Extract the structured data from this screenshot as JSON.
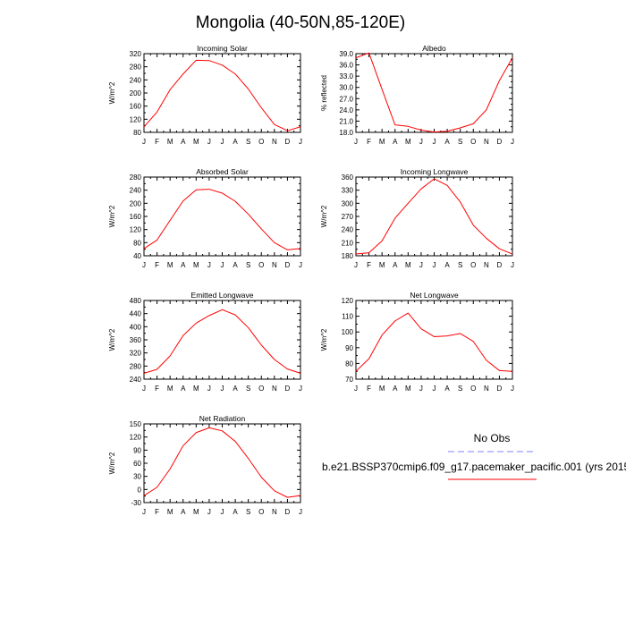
{
  "title": "Mongolia (40-50N,85-120E)",
  "legend": {
    "obs_label": "No Obs",
    "obs_color": "#8080ff",
    "model_label": "b.e21.BSSP370cmip6.f09_g17.pacemaker_pacific.001 (yrs 2015",
    "model_color": "#ff0000"
  },
  "chart_data": [
    {
      "type": "line",
      "title": "Incoming Solar",
      "ylabel": "W/m^2",
      "categories": [
        "J",
        "F",
        "M",
        "A",
        "M",
        "J",
        "J",
        "A",
        "S",
        "O",
        "N",
        "D",
        "J"
      ],
      "ylim": [
        80,
        320
      ],
      "yticks": [
        80,
        120,
        160,
        200,
        240,
        280,
        320
      ],
      "ytick_decimals": 0,
      "series": [
        {
          "color": "#ff0000",
          "values": [
            97,
            142,
            210,
            258,
            300,
            299,
            285,
            258,
            212,
            155,
            104,
            85,
            97
          ]
        }
      ]
    },
    {
      "type": "line",
      "title": "Albedo",
      "ylabel": "% reflected",
      "categories": [
        "J",
        "F",
        "M",
        "A",
        "M",
        "J",
        "J",
        "A",
        "S",
        "O",
        "N",
        "D",
        "J"
      ],
      "ylim": [
        18,
        39
      ],
      "yticks": [
        18,
        21,
        24,
        27,
        30,
        33,
        36,
        39
      ],
      "ytick_decimals": 1,
      "series": [
        {
          "color": "#ff0000",
          "values": [
            37.9,
            39.2,
            29.5,
            20.0,
            19.6,
            18.6,
            18.1,
            18.3,
            19.2,
            20.3,
            24.0,
            31.8,
            37.9
          ]
        }
      ]
    },
    {
      "type": "line",
      "title": "Absorbed Solar",
      "ylabel": "W/m^2",
      "categories": [
        "J",
        "F",
        "M",
        "A",
        "M",
        "J",
        "J",
        "A",
        "S",
        "O",
        "N",
        "D",
        "J"
      ],
      "ylim": [
        40,
        280
      ],
      "yticks": [
        40,
        80,
        120,
        160,
        200,
        240,
        280
      ],
      "ytick_decimals": 0,
      "series": [
        {
          "color": "#ff0000",
          "values": [
            62,
            88,
            148,
            207,
            241,
            243,
            231,
            206,
            167,
            122,
            80,
            58,
            62
          ]
        }
      ]
    },
    {
      "type": "line",
      "title": "Incoming Longwave",
      "ylabel": "W/m^2",
      "categories": [
        "J",
        "F",
        "M",
        "A",
        "M",
        "J",
        "J",
        "A",
        "S",
        "O",
        "N",
        "D",
        "J"
      ],
      "ylim": [
        180,
        360
      ],
      "yticks": [
        180,
        210,
        240,
        270,
        300,
        330,
        360
      ],
      "ytick_decimals": 0,
      "series": [
        {
          "color": "#ff0000",
          "values": [
            184,
            187,
            214,
            266,
            300,
            333,
            356,
            341,
            303,
            250,
            220,
            196,
            184
          ]
        }
      ]
    },
    {
      "type": "line",
      "title": "Emitted Longwave",
      "ylabel": "W/m^2",
      "categories": [
        "J",
        "F",
        "M",
        "A",
        "M",
        "J",
        "J",
        "A",
        "S",
        "O",
        "N",
        "D",
        "J"
      ],
      "ylim": [
        240,
        480
      ],
      "yticks": [
        240,
        280,
        320,
        360,
        400,
        440,
        480
      ],
      "ytick_decimals": 0,
      "series": [
        {
          "color": "#ff0000",
          "values": [
            258,
            270,
            311,
            373,
            411,
            434,
            452,
            436,
            397,
            344,
            300,
            271,
            258
          ]
        }
      ]
    },
    {
      "type": "line",
      "title": "Net Longwave",
      "ylabel": "W/m^2",
      "categories": [
        "J",
        "F",
        "M",
        "A",
        "M",
        "J",
        "J",
        "A",
        "S",
        "O",
        "N",
        "D",
        "J"
      ],
      "ylim": [
        70,
        120
      ],
      "yticks": [
        70,
        80,
        90,
        100,
        110,
        120
      ],
      "ytick_decimals": 0,
      "series": [
        {
          "color": "#ff0000",
          "values": [
            75,
            83,
            98,
            107,
            112,
            102,
            97,
            97.5,
            99,
            94,
            82,
            75.5,
            75
          ]
        }
      ]
    },
    {
      "type": "line",
      "title": "Net Radiation",
      "ylabel": "W/m^2",
      "categories": [
        "J",
        "F",
        "M",
        "A",
        "M",
        "J",
        "J",
        "A",
        "S",
        "O",
        "N",
        "D",
        "J"
      ],
      "ylim": [
        -30,
        150
      ],
      "yticks": [
        -30,
        0,
        30,
        60,
        90,
        120,
        150
      ],
      "ytick_decimals": 0,
      "series": [
        {
          "color": "#ff0000",
          "values": [
            -14,
            5,
            47,
            100,
            130,
            141,
            134,
            110,
            71,
            28,
            -3,
            -18,
            -14
          ]
        }
      ]
    }
  ]
}
